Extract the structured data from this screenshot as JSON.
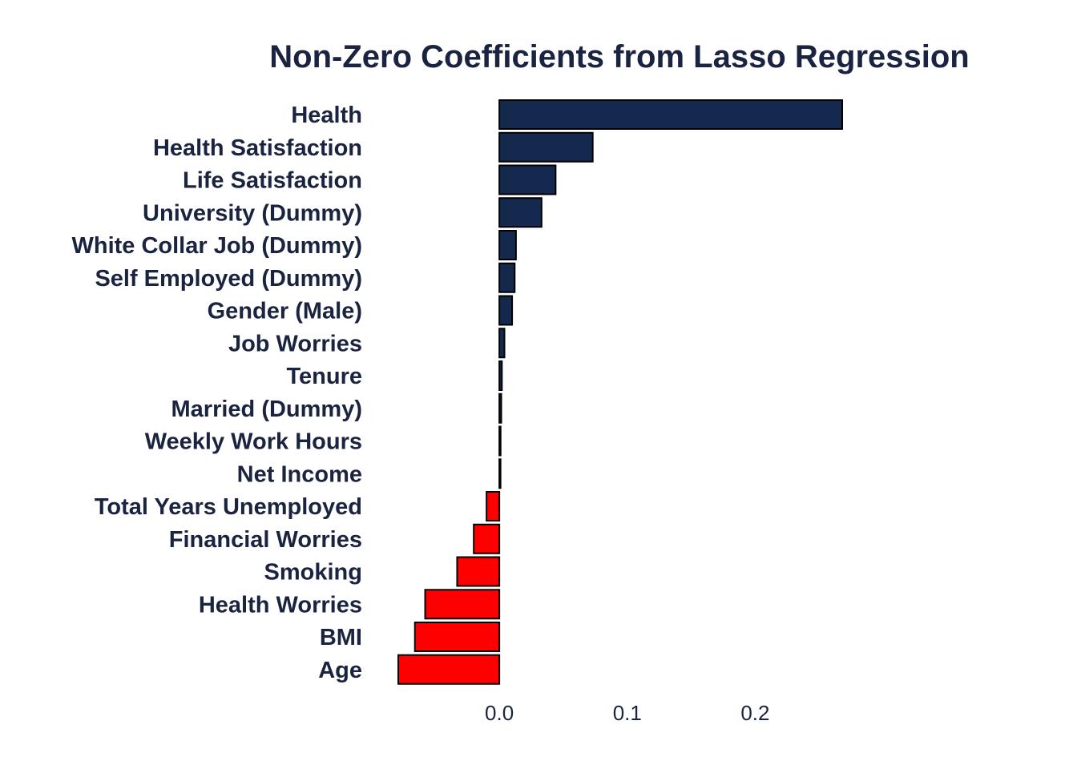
{
  "chart_data": {
    "type": "bar",
    "orientation": "horizontal",
    "title": "Non-Zero Coefficients from Lasso Regression",
    "xlabel": "",
    "ylabel": "",
    "categories": [
      "Health",
      "Health Satisfaction",
      "Life Satisfaction",
      "University (Dummy)",
      "White Collar Job (Dummy)",
      "Self Employed (Dummy)",
      "Gender (Male)",
      "Job Worries",
      "Tenure",
      "Married (Dummy)",
      "Weekly Work Hours",
      "Net Income",
      "Total Years Unemployed",
      "Financial Worries",
      "Smoking",
      "Health Worries",
      "BMI",
      "Age"
    ],
    "values": [
      0.268,
      0.073,
      0.044,
      0.033,
      0.013,
      0.012,
      0.01,
      0.004,
      0.002,
      0.0015,
      0.001,
      0.0005,
      -0.01,
      -0.02,
      -0.033,
      -0.058,
      -0.066,
      -0.079
    ],
    "xlim": [
      -0.079,
      0.268
    ],
    "xticks": [
      "0.0",
      "0.1",
      "0.2"
    ],
    "xtick_values": [
      0.0,
      0.1,
      0.2
    ],
    "grid": false,
    "legend": "none",
    "colors": {
      "positive": "#15294e",
      "negative": "#ff0000",
      "bar_outline": "#000000",
      "text": "#1a2340",
      "tick_text": "#1a2340",
      "background": "#ffffff"
    }
  }
}
